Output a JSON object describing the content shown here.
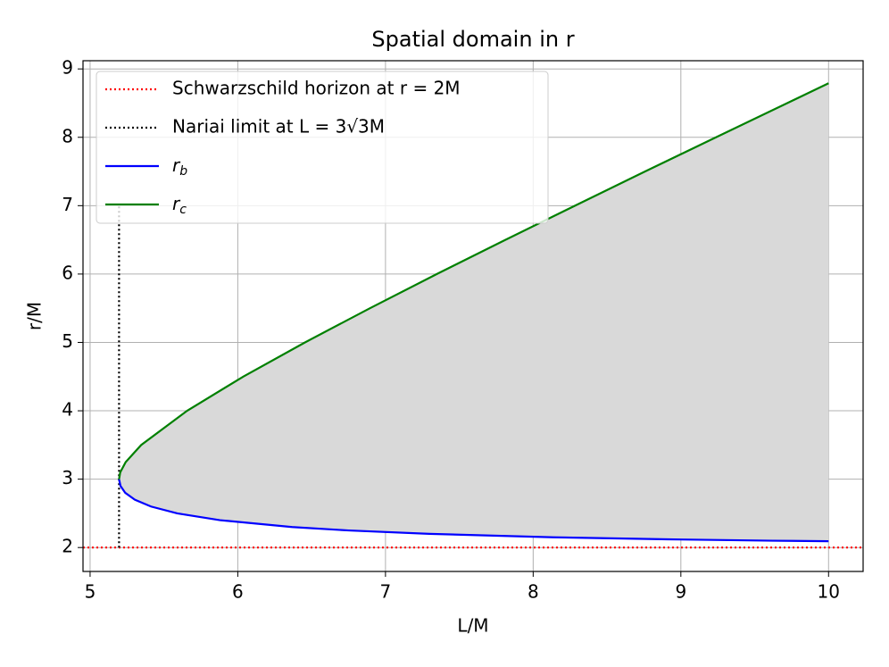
{
  "chart_data": {
    "type": "line",
    "title": "Spatial domain in r",
    "x_label": "L/M",
    "y_label": "r/M",
    "xlim": [
      4.952,
      10.234
    ],
    "ylim": [
      1.65,
      9.12
    ],
    "xticks": [
      5,
      6,
      7,
      8,
      9,
      10
    ],
    "yticks": [
      2,
      3,
      4,
      5,
      6,
      7,
      8,
      9
    ],
    "grid": true,
    "legend": "upper left",
    "fill_color": "#d9d9d9",
    "series": [
      {
        "name": "Schwarzschild horizon at r = 2M",
        "color": "#ff0000",
        "dash": "dotted",
        "hline": 2
      },
      {
        "name": "Nariai limit at L = 3√3M",
        "color": "#000000",
        "dash": "dotted",
        "x": [
          5.196,
          5.196
        ],
        "values": [
          2,
          7
        ]
      },
      {
        "name": "rb",
        "color": "#0000ff",
        "x": [
          5.196,
          5.206,
          5.238,
          5.303,
          5.412,
          5.59,
          5.879,
          6.368,
          6.75,
          7.297,
          8.14,
          8.911,
          9.623,
          10
        ],
        "values": [
          3,
          2.9,
          2.8,
          2.7,
          2.6,
          2.5,
          2.4,
          2.3,
          2.25,
          2.2,
          2.15,
          2.12,
          2.1,
          2.092
        ]
      },
      {
        "name": "rc",
        "color": "#008000",
        "x": [
          5.196,
          5.204,
          5.241,
          5.346,
          5.657,
          6.037,
          6.455,
          6.895,
          7.348,
          7.812,
          8.283,
          8.758,
          9.238,
          9.72,
          10
        ],
        "values": [
          3,
          3.1,
          3.25,
          3.5,
          4,
          4.5,
          5,
          5.5,
          6,
          6.5,
          7,
          7.5,
          8,
          8.5,
          8.79
        ]
      }
    ]
  }
}
